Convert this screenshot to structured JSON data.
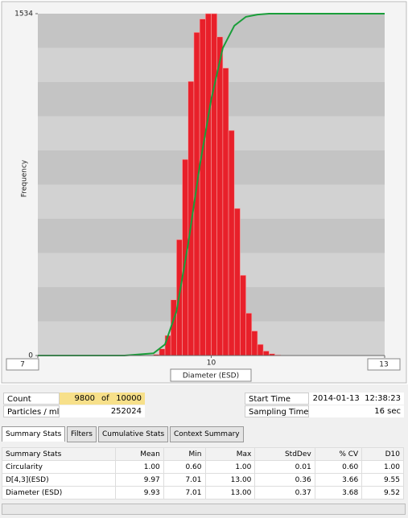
{
  "chart_data": {
    "type": "histogram",
    "xlabel": "Diameter (ESD)",
    "ylabel": "Frequency",
    "bins": [
      9.0,
      9.1,
      9.2,
      9.3,
      9.4,
      9.5,
      9.6,
      9.7,
      9.8,
      9.9,
      10.0,
      10.1,
      10.2,
      10.3,
      10.4,
      10.5,
      10.6,
      10.7,
      10.8,
      10.9,
      11.0,
      11.1,
      11.2
    ],
    "values": [
      5,
      30,
      90,
      250,
      520,
      880,
      1230,
      1450,
      1510,
      1534,
      1534,
      1430,
      1290,
      1010,
      660,
      360,
      190,
      110,
      50,
      20,
      8,
      3
    ],
    "color": "#e8202a",
    "cumulative": {
      "x": [
        7,
        8.5,
        9.0,
        9.2,
        9.4,
        9.6,
        9.8,
        10.0,
        10.2,
        10.4,
        10.6,
        10.8,
        11.0,
        11.5,
        13
      ],
      "values": [
        0,
        0,
        10,
        50,
        200,
        500,
        850,
        1150,
        1380,
        1480,
        1520,
        1530,
        1534,
        1534,
        1534
      ],
      "color": "#1a9e3a"
    },
    "xlim": [
      7,
      13
    ],
    "ylim": [
      0,
      1534
    ],
    "xticks": [
      7,
      10,
      13
    ],
    "yticks": [
      0,
      1534
    ]
  },
  "panel": {
    "count_label": "Count",
    "count": "9800",
    "of": "of",
    "total": "10000",
    "particles_label": "Particles / ml",
    "particles": "252024",
    "start_label": "Start Time",
    "start": "2014-01-13  12:38:23",
    "sampling_label": "Sampling Time",
    "sampling": "16 sec",
    "tabs": [
      "Summary Stats",
      "Filters",
      "Cumulative Stats",
      "Context Summary"
    ],
    "table": {
      "header": [
        "Summary Stats",
        "Mean",
        "Min",
        "Max",
        "StdDev",
        "% CV",
        "D10"
      ],
      "rows": [
        [
          "Circularity",
          "1.00",
          "0.60",
          "1.00",
          "0.01",
          "0.60",
          "1.00"
        ],
        [
          "D[4,3](ESD)",
          "9.97",
          "7.01",
          "13.00",
          "0.36",
          "3.66",
          "9.55"
        ],
        [
          "Diameter (ESD)",
          "9.93",
          "7.01",
          "13.00",
          "0.37",
          "3.68",
          "9.52"
        ]
      ]
    }
  }
}
